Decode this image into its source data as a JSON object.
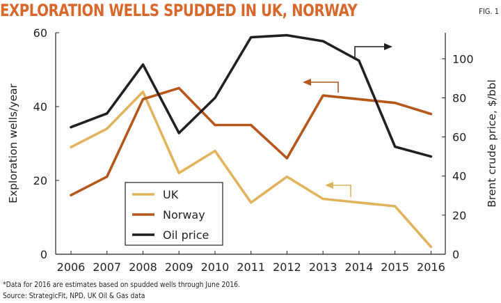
{
  "title": "EXPLORATION WELLS SPUDDED IN UK, NORWAY",
  "fig_label": "FIG. 1",
  "footnote": "*Data for 2016 are estimates based on spudded wells through June 2016.",
  "source": "Source: StrategicFit, NPD, UK Oil & Gas data",
  "chart_data": {
    "type": "line",
    "x": [
      "2006",
      "2007",
      "2008",
      "2009",
      "2010",
      "2011",
      "2012",
      "2013",
      "2014",
      "2015",
      "2016"
    ],
    "ylabel": "Exploration wells/year",
    "y2label": "Brent crude price, $/bbl",
    "ylim": [
      0,
      60
    ],
    "y2lim": [
      0,
      113.3
    ],
    "yticks": [
      "0",
      "20",
      "40",
      "60"
    ],
    "y2ticks": [
      "0",
      "20",
      "40",
      "60",
      "80",
      "100"
    ],
    "grid": false,
    "legend_position": "bottom-left",
    "series": [
      {
        "name": "UK",
        "axis": "left",
        "color": "#e0b45c",
        "values": [
          29,
          34,
          44,
          22,
          28,
          14,
          21,
          15,
          14,
          13,
          2
        ]
      },
      {
        "name": "Norway",
        "axis": "left",
        "color": "#b5561b",
        "values": [
          16,
          21,
          42,
          45,
          35,
          35,
          26,
          43,
          42,
          41,
          38
        ]
      },
      {
        "name": "Oil price",
        "axis": "right",
        "color": "#231f20",
        "values": [
          65,
          72,
          97,
          62,
          80,
          111,
          112,
          109,
          99,
          55,
          50
        ]
      }
    ]
  }
}
